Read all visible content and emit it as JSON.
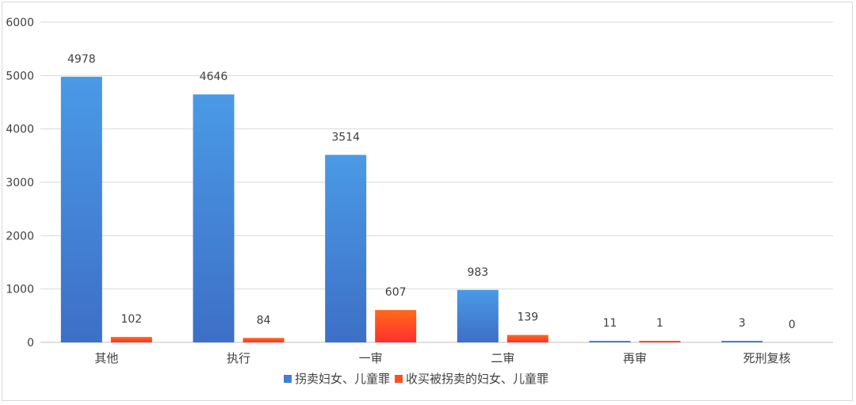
{
  "chart_data": {
    "type": "bar",
    "categories": [
      "其他",
      "执行",
      "一审",
      "二审",
      "再审",
      "死刑复核"
    ],
    "series": [
      {
        "name": "拐卖妇女、儿童罪",
        "values": [
          4978,
          4646,
          3514,
          983,
          11,
          3
        ],
        "color": "#3f80d6"
      },
      {
        "name": "收买被拐卖的妇女、儿童罪",
        "values": [
          102,
          84,
          607,
          139,
          1,
          0
        ],
        "color": "#ff4f1f"
      }
    ],
    "ylim": [
      0,
      6000
    ],
    "yticks": [
      0,
      1000,
      2000,
      3000,
      4000,
      5000,
      6000
    ],
    "grid": true,
    "legend": "bottom",
    "data_labels": true
  }
}
